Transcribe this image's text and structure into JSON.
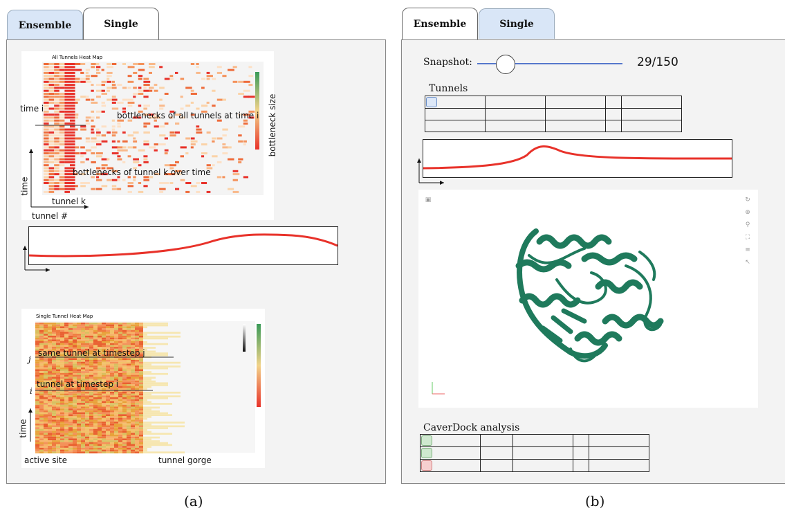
{
  "left": {
    "tabs": [
      {
        "label": "Ensemble",
        "active": false
      },
      {
        "label": "Single",
        "active": true
      }
    ],
    "all_tunnels_heatmap": {
      "title": "All Tunnels Heat Map",
      "annotation_time_i": "time i",
      "annotation_row": "bottlenecks of all tunnels at time i",
      "annotation_col": "bottlenecks of tunnel k over time",
      "axis_y_label": "time",
      "axis_x_label": "tunnel #",
      "tunnel_k_label": "tunnel k",
      "colorbar_label": "bottleneck size"
    },
    "single_tunnel_heatmap": {
      "title": "Single Tunnel Heat Map",
      "label_j": "j",
      "label_i": "i",
      "annotation_j": "same tunnel at timestep j",
      "annotation_i": "tunnel at timestep i",
      "axis_y_label": "time",
      "left_label": "active site",
      "right_label": "tunnel gorge"
    },
    "caption": "(a)"
  },
  "right": {
    "tabs": [
      {
        "label": "Ensemble",
        "active": true
      },
      {
        "label": "Single",
        "active": false
      }
    ],
    "snapshot": {
      "label": "Snapshot:",
      "value": "29/150",
      "current": 29,
      "total": 150
    },
    "tunnels_title": "Tunnels",
    "caverdock_title": "CaverDock analysis",
    "caption": "(b)",
    "colors": {
      "protein": "#1f7a5c",
      "curve": "#e8322a",
      "tab_inactive": "#d9e6f7"
    },
    "viewer_icons": [
      "camera-icon",
      "rotate-icon",
      "center-icon",
      "zoom-icon",
      "fullscreen-icon",
      "settings-icon",
      "cursor-icon"
    ]
  }
}
